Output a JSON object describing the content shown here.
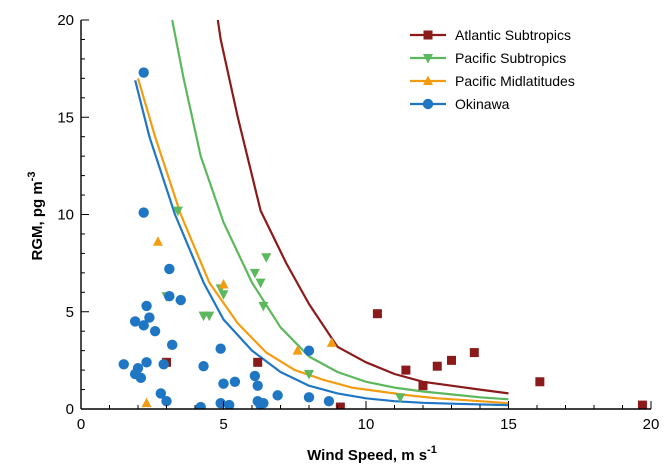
{
  "chart_data": {
    "type": "scatter",
    "title": "",
    "xlabel": {
      "main": "Wind Speed, m s",
      "sup": "-1"
    },
    "ylabel": {
      "main": "RGM, pg m",
      "sup": "-3"
    },
    "xlim": [
      0,
      20
    ],
    "ylim": [
      0,
      20
    ],
    "xticks": [
      0,
      5,
      10,
      15,
      20
    ],
    "yticks": [
      0,
      5,
      10,
      15,
      20
    ],
    "grid": false,
    "legend": "top-right",
    "series": [
      {
        "name": "Atlantic Subtropics",
        "color": "#8b1a1a",
        "marker": "square",
        "points": [
          [
            3.0,
            2.4
          ],
          [
            6.2,
            2.4
          ],
          [
            9.1,
            0.1
          ],
          [
            10.4,
            4.9
          ],
          [
            11.4,
            2.0
          ],
          [
            12.0,
            1.2
          ],
          [
            12.5,
            2.2
          ],
          [
            13.0,
            2.5
          ],
          [
            13.8,
            2.9
          ],
          [
            16.1,
            1.4
          ],
          [
            19.7,
            0.2
          ]
        ],
        "curve": [
          [
            4.8,
            20.0
          ],
          [
            4.9,
            19.0
          ],
          [
            5.5,
            15.0
          ],
          [
            6.3,
            10.2
          ],
          [
            7.2,
            7.5
          ],
          [
            8.0,
            5.4
          ],
          [
            9.0,
            3.2
          ],
          [
            10.0,
            2.4
          ],
          [
            11.0,
            1.8
          ],
          [
            12.0,
            1.4
          ],
          [
            13.0,
            1.2
          ],
          [
            14.0,
            1.0
          ],
          [
            15.0,
            0.8
          ]
        ]
      },
      {
        "name": "Pacific Subtropics",
        "color": "#5cb85c",
        "marker": "triangle-down",
        "points": [
          [
            3.0,
            5.8
          ],
          [
            3.4,
            10.2
          ],
          [
            4.3,
            4.8
          ],
          [
            4.5,
            4.8
          ],
          [
            4.9,
            6.2
          ],
          [
            5.0,
            5.9
          ],
          [
            6.1,
            7.0
          ],
          [
            6.3,
            6.5
          ],
          [
            6.4,
            5.3
          ],
          [
            6.5,
            7.8
          ],
          [
            8.0,
            1.8
          ],
          [
            11.2,
            0.6
          ]
        ],
        "curve": [
          [
            3.2,
            20.0
          ],
          [
            3.6,
            17.0
          ],
          [
            4.2,
            13.0
          ],
          [
            5.0,
            9.6
          ],
          [
            6.0,
            6.5
          ],
          [
            7.0,
            4.2
          ],
          [
            8.0,
            2.7
          ],
          [
            9.0,
            1.9
          ],
          [
            10.0,
            1.4
          ],
          [
            11.0,
            1.1
          ],
          [
            12.0,
            0.9
          ],
          [
            13.0,
            0.75
          ],
          [
            14.0,
            0.6
          ],
          [
            15.0,
            0.5
          ]
        ]
      },
      {
        "name": "Pacific Midlatitudes",
        "color": "#f39c12",
        "marker": "triangle-up",
        "points": [
          [
            2.3,
            0.3
          ],
          [
            2.7,
            8.6
          ],
          [
            5.0,
            6.4
          ],
          [
            7.6,
            3.0
          ],
          [
            8.8,
            3.4
          ]
        ],
        "curve": [
          [
            2.0,
            17.0
          ],
          [
            2.6,
            14.0
          ],
          [
            3.5,
            10.0
          ],
          [
            4.5,
            6.5
          ],
          [
            5.5,
            4.4
          ],
          [
            6.5,
            2.9
          ],
          [
            7.5,
            2.0
          ],
          [
            8.5,
            1.5
          ],
          [
            9.5,
            1.1
          ],
          [
            10.5,
            0.9
          ],
          [
            11.5,
            0.7
          ],
          [
            12.5,
            0.55
          ],
          [
            13.5,
            0.45
          ],
          [
            15.0,
            0.3
          ]
        ]
      },
      {
        "name": "Okinawa",
        "color": "#1f77c4",
        "marker": "circle",
        "points": [
          [
            2.2,
            17.3
          ],
          [
            2.2,
            10.1
          ],
          [
            3.1,
            7.2
          ],
          [
            3.1,
            5.8
          ],
          [
            3.5,
            5.6
          ],
          [
            2.3,
            5.3
          ],
          [
            2.4,
            4.7
          ],
          [
            1.9,
            4.5
          ],
          [
            2.2,
            4.3
          ],
          [
            2.6,
            4.0
          ],
          [
            3.2,
            3.3
          ],
          [
            1.5,
            2.3
          ],
          [
            2.0,
            2.1
          ],
          [
            2.3,
            2.4
          ],
          [
            2.9,
            2.3
          ],
          [
            1.9,
            1.8
          ],
          [
            2.1,
            1.6
          ],
          [
            2.8,
            0.8
          ],
          [
            3.0,
            0.4
          ],
          [
            4.2,
            0.1
          ],
          [
            4.9,
            0.3
          ],
          [
            5.2,
            0.2
          ],
          [
            5.0,
            1.3
          ],
          [
            5.4,
            1.4
          ],
          [
            4.9,
            3.1
          ],
          [
            4.3,
            2.2
          ],
          [
            6.1,
            1.7
          ],
          [
            6.2,
            1.2
          ],
          [
            6.2,
            0.4
          ],
          [
            6.3,
            0.2
          ],
          [
            6.4,
            0.3
          ],
          [
            6.9,
            0.7
          ],
          [
            8.0,
            3.0
          ],
          [
            8.0,
            0.6
          ],
          [
            8.7,
            0.4
          ]
        ],
        "curve": [
          [
            1.9,
            16.9
          ],
          [
            2.4,
            14.0
          ],
          [
            3.3,
            10.0
          ],
          [
            4.3,
            6.5
          ],
          [
            5.0,
            4.6
          ],
          [
            6.0,
            3.0
          ],
          [
            7.0,
            1.9
          ],
          [
            8.0,
            1.2
          ],
          [
            9.0,
            0.8
          ],
          [
            10.0,
            0.55
          ],
          [
            11.0,
            0.4
          ],
          [
            12.0,
            0.32
          ],
          [
            13.0,
            0.27
          ],
          [
            15.0,
            0.2
          ]
        ]
      }
    ]
  }
}
